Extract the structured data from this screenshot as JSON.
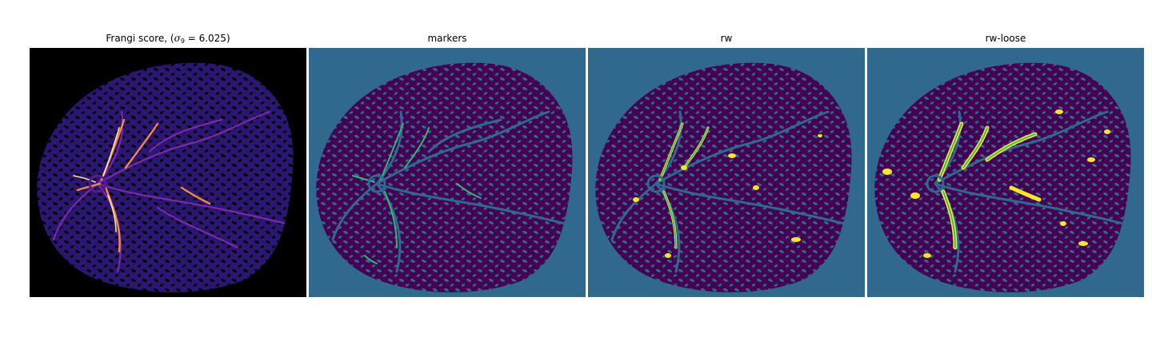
{
  "panels": [
    {
      "title_prefix": "Frangi score, (",
      "sigma_symbol": "σ",
      "sigma_subscript": "9",
      "sigma_value": " = 6.025",
      "title_suffix": ")"
    },
    {
      "title": "markers"
    },
    {
      "title": "rw"
    },
    {
      "title": "rw-loose"
    }
  ],
  "colors": {
    "frangi_background": "#000000",
    "frangi_tissue": "#2b1672",
    "frangi_vessel": "#f08a4b",
    "frangi_vessel_bright": "#fde6a3",
    "label_background": "#31688e",
    "label_tissue": "#440154",
    "label_marker": "#35b779",
    "label_loose": "#fde725"
  }
}
